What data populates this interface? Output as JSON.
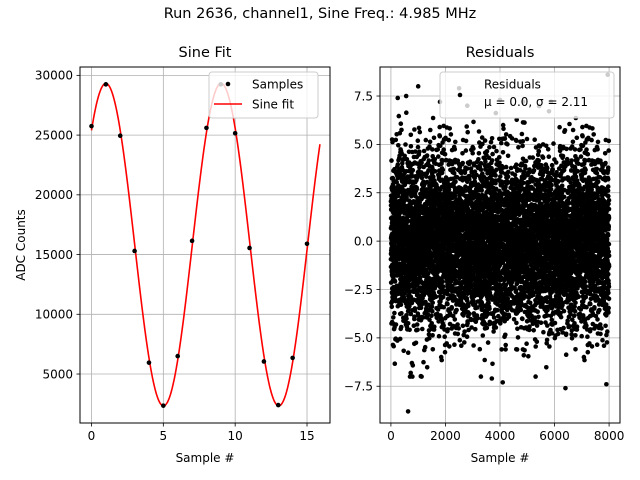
{
  "suptitle": "Run 2636, channel1, Sine Freq.: 4.985 MHz",
  "chart_data": [
    {
      "type": "scatter",
      "title": "Sine Fit",
      "xlabel": "Sample #",
      "ylabel": "ADC Counts",
      "xlim": [
        -0.8,
        16.6
      ],
      "ylim": [
        900,
        30700
      ],
      "xticks": [
        0,
        5,
        10,
        15
      ],
      "yticks": [
        5000,
        10000,
        15000,
        20000,
        25000,
        30000
      ],
      "grid": true,
      "legend": {
        "placement": "top-right",
        "entries": [
          "Samples",
          "Sine fit"
        ]
      },
      "series": [
        {
          "name": "Samples",
          "kind": "points",
          "color": "#000000",
          "x": [
            0,
            1,
            2,
            3,
            4,
            5,
            6,
            7,
            8,
            9,
            10,
            11,
            12,
            13,
            14,
            15
          ],
          "y": [
            25750,
            29250,
            24950,
            15300,
            5950,
            2350,
            6500,
            16150,
            25600,
            29250,
            25150,
            15550,
            6050,
            2400,
            6350,
            15900
          ]
        },
        {
          "name": "Sine fit",
          "kind": "line",
          "color": "#ff0000",
          "function": {
            "amplitude": 13500,
            "offset": 15830,
            "period": 8.024,
            "phase_shift": 0.1,
            "x_range": [
              0,
              15.9
            ]
          }
        }
      ]
    },
    {
      "type": "scatter",
      "title": "Residuals",
      "xlabel": "Sample #",
      "ylabel": "",
      "xlim": [
        -400,
        8400
      ],
      "ylim": [
        -9.4,
        9.0
      ],
      "xticks": [
        0,
        2000,
        4000,
        6000,
        8000
      ],
      "yticks": [
        -7.5,
        -5.0,
        -2.5,
        0.0,
        2.5,
        5.0,
        7.5
      ],
      "grid": true,
      "legend": {
        "placement": "top-right",
        "entries": [
          "Residuals",
          "μ = 0.0, σ = 2.11"
        ]
      },
      "series": [
        {
          "name": "Residuals",
          "kind": "points",
          "color": "#000000",
          "n_points": 8000,
          "mean": 0.0,
          "std": 2.11,
          "x_range": [
            0,
            8000
          ],
          "outliers": [
            {
              "x": 630,
              "y": -8.8
            },
            {
              "x": 7950,
              "y": 8.6
            },
            {
              "x": 1000,
              "y": 8.0
            },
            {
              "x": 2500,
              "y": 7.9
            },
            {
              "x": 250,
              "y": 7.4
            },
            {
              "x": 560,
              "y": 7.5
            },
            {
              "x": 2800,
              "y": 7.0
            },
            {
              "x": 4000,
              "y": 7.3
            },
            {
              "x": 6400,
              "y": -7.6
            },
            {
              "x": 7900,
              "y": -7.4
            },
            {
              "x": 4100,
              "y": -7.3
            },
            {
              "x": 700,
              "y": -7.0
            },
            {
              "x": 3700,
              "y": -7.1
            },
            {
              "x": 1800,
              "y": 7.2
            }
          ]
        }
      ]
    }
  ]
}
